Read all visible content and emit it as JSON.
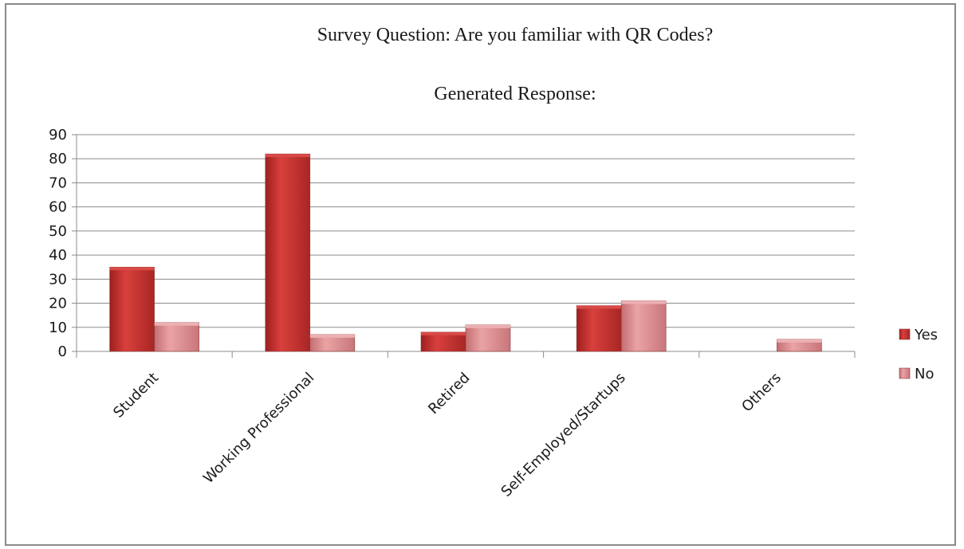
{
  "chart_data": {
    "type": "bar",
    "title": "Survey Question: Are you familiar with QR Codes?",
    "subtitle": "Generated Response:",
    "xlabel": "",
    "ylabel": "",
    "categories": [
      "Student",
      "Working Professional",
      "Retired",
      "Self-Employed/Startups",
      "Others"
    ],
    "series": [
      {
        "name": "Yes",
        "values": [
          35,
          82,
          8,
          19,
          0
        ],
        "color": "#c0312f"
      },
      {
        "name": "No",
        "values": [
          12,
          7,
          11,
          21,
          5
        ],
        "color": "#d9878a"
      }
    ],
    "ylim": [
      0,
      90
    ],
    "yticks": [
      0,
      10,
      20,
      30,
      40,
      50,
      60,
      70,
      80,
      90
    ],
    "grid": true,
    "legend": "right"
  }
}
